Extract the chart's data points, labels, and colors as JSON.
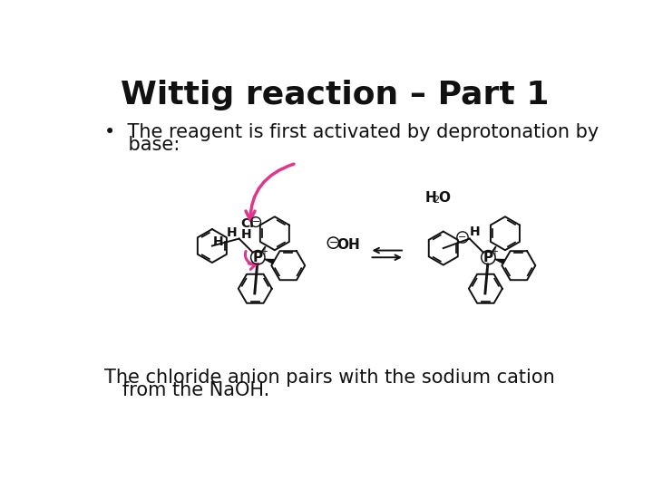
{
  "title": "Wittig reaction – Part 1",
  "title_fontsize": 26,
  "title_fontweight": "bold",
  "bullet_text_line1": "•  The reagent is first activated by deprotonation by",
  "bullet_text_line2": "    base:",
  "body_fontsize": 15,
  "footer_line1": "The chloride anion pairs with the sodium cation",
  "footer_line2": "   from the NaOH.",
  "footer_fontsize": 15,
  "background_color": "#ffffff",
  "text_color": "#111111",
  "pink": "#e0368c",
  "black": "#111111"
}
